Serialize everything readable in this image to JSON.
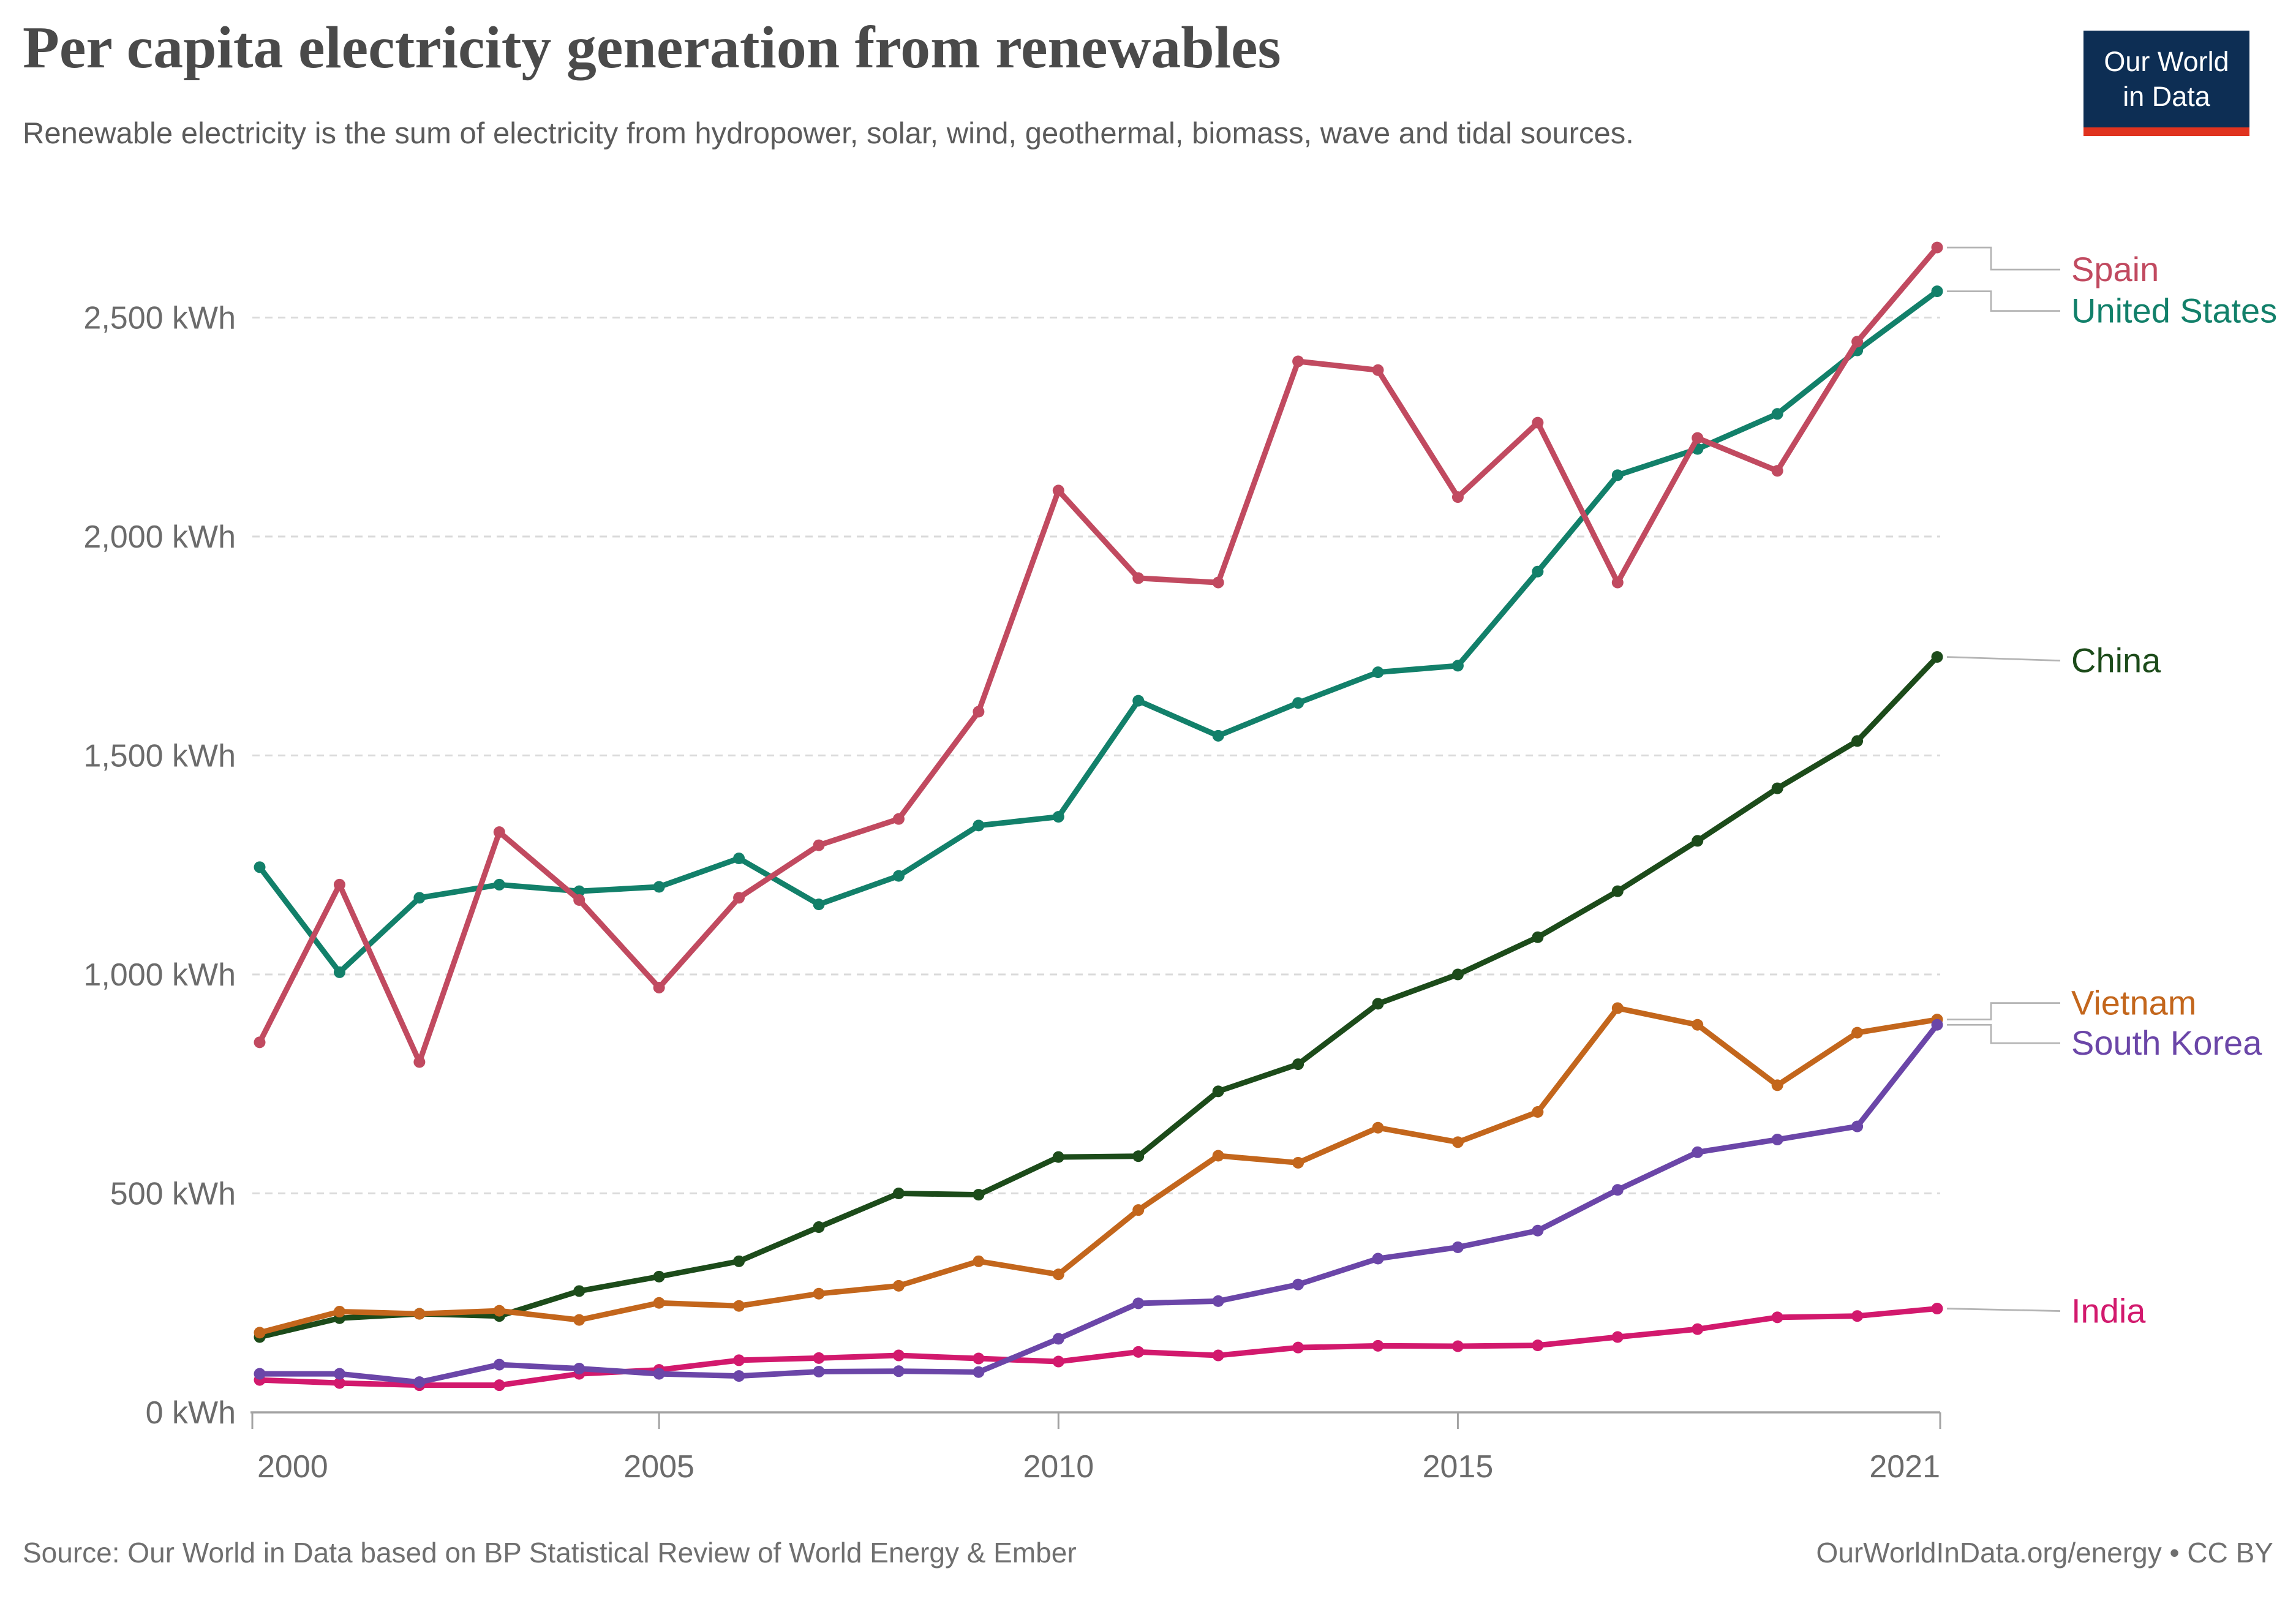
{
  "header": {
    "title": "Per capita electricity generation from renewables",
    "subtitle": "Renewable electricity is the sum of electricity from hydropower, solar, wind, geothermal, biomass, wave and tidal sources.",
    "logo": {
      "line1": "Our World",
      "line2": "in Data",
      "navy": "#0d2e54",
      "red": "#e0331f"
    }
  },
  "footer": {
    "source": "Source: Our World in Data based on BP Statistical Review of World Energy & Ember",
    "link": "OurWorldInData.org/energy • CC BY"
  },
  "chart_data": {
    "type": "line",
    "title": "Per capita electricity generation from renewables",
    "xlabel": "",
    "ylabel": "",
    "unit": "kWh",
    "x": [
      2000,
      2001,
      2002,
      2003,
      2004,
      2005,
      2006,
      2007,
      2008,
      2009,
      2010,
      2011,
      2012,
      2013,
      2014,
      2015,
      2016,
      2017,
      2018,
      2019,
      2020,
      2021
    ],
    "xticks": [
      2000,
      2005,
      2010,
      2015,
      2021
    ],
    "yticks": [
      0,
      500,
      1000,
      1500,
      2000,
      2500
    ],
    "ytick_labels": [
      "0 kWh",
      "500 kWh",
      "1,000 kWh",
      "1,500 kWh",
      "2,000 kWh",
      "2,500 kWh"
    ],
    "ylim": [
      0,
      2660
    ],
    "grid": "horizontal-dashed",
    "legend_position": "right-edge-labels",
    "series": [
      {
        "name": "China",
        "color": "#1c4b1a",
        "values": [
          172,
          215,
          225,
          220,
          277,
          310,
          345,
          423,
          500,
          497,
          583,
          585,
          733,
          795,
          933,
          1000,
          1085,
          1190,
          1305,
          1425,
          1533,
          1725
        ]
      },
      {
        "name": "Vietnam",
        "color": "#c3661c",
        "values": [
          182,
          230,
          225,
          232,
          211,
          250,
          243,
          271,
          289,
          345,
          315,
          462,
          586,
          570,
          650,
          617,
          686,
          923,
          885,
          747,
          867,
          897
        ]
      },
      {
        "name": "India",
        "color": "#d2196d",
        "values": [
          74,
          67,
          62,
          62,
          88,
          97,
          119,
          124,
          130,
          123,
          116,
          138,
          130,
          148,
          152,
          151,
          153,
          172,
          190,
          217,
          220,
          237
        ]
      },
      {
        "name": "South Korea",
        "color": "#6b46a8",
        "values": [
          88,
          88,
          69,
          109,
          100,
          88,
          83,
          93,
          94,
          92,
          168,
          249,
          254,
          292,
          351,
          377,
          415,
          508,
          594,
          623,
          653,
          885
        ]
      },
      {
        "name": "United States",
        "color": "#12806a",
        "values": [
          1245,
          1005,
          1175,
          1205,
          1190,
          1200,
          1265,
          1160,
          1225,
          1340,
          1360,
          1625,
          1545,
          1620,
          1690,
          1705,
          1920,
          2140,
          2200,
          2280,
          2425,
          2560
        ]
      },
      {
        "name": "Spain",
        "color": "#c14a60",
        "values": [
          845,
          1205,
          800,
          1325,
          1170,
          970,
          1175,
          1295,
          1355,
          1600,
          2105,
          1905,
          1895,
          2400,
          2380,
          2090,
          2260,
          1895,
          2225,
          2150,
          2445,
          2660
        ]
      }
    ]
  }
}
